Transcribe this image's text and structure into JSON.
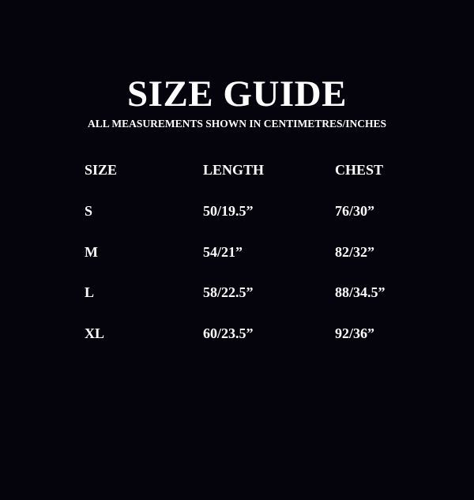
{
  "title": "SIZE GUIDE",
  "subtitle": "ALL MEASUREMENTS SHOWN IN CENTIMETRES/INCHES",
  "colors": {
    "background": "#05040d",
    "text": "#ffffff"
  },
  "table": {
    "headers": [
      "SIZE",
      "LENGTH",
      "CHEST"
    ],
    "rows": [
      [
        "S",
        "50/19.5”",
        "76/30”"
      ],
      [
        "M",
        "54/21”",
        "82/32”"
      ],
      [
        "L",
        "58/22.5”",
        "88/34.5”"
      ],
      [
        "XL",
        "60/23.5”",
        "92/36”"
      ]
    ]
  }
}
